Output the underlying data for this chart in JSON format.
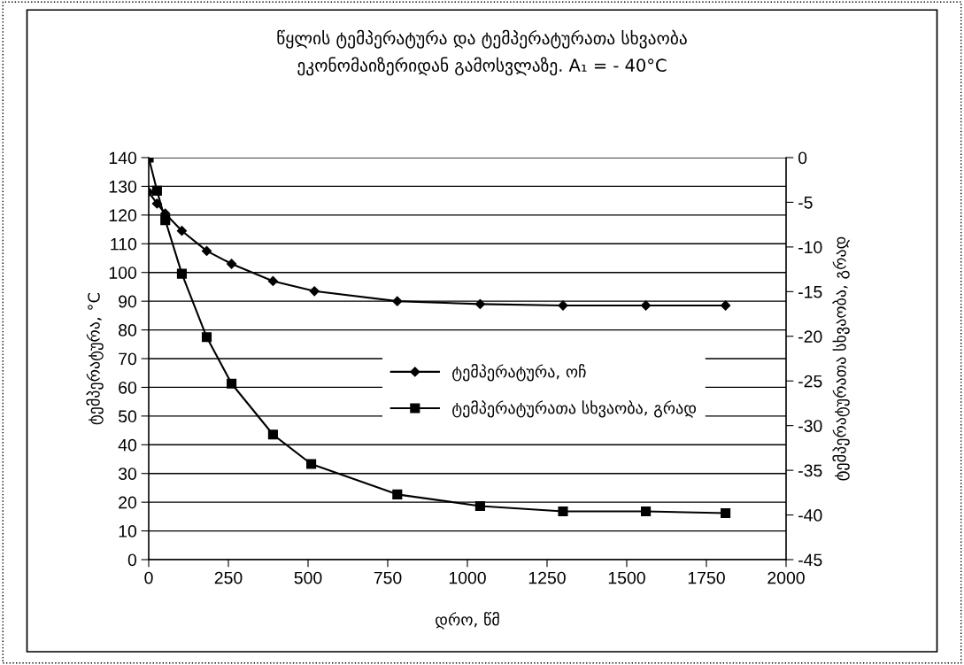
{
  "chart_data": {
    "type": "line",
    "title": "წყლის ტემპერატურა და ტემპერატურათა სხვაობა\nეკონომაიზერიდან გამოსვლაზე. A₁ = - 40°C",
    "xlabel": "დრო, წმ",
    "ylabel": "ტემპერატურა, °C",
    "y2label": "ტემპერატურათა სხვაობა, გრად",
    "series": [
      {
        "name": "ტემპერატურა, ოჩ",
        "color": "#000000",
        "marker": "diamond",
        "x": [
          0,
          26,
          52,
          104,
          182,
          260,
          390,
          520,
          780,
          1040,
          1300,
          1560,
          1810
        ],
        "values": [
          128,
          124,
          120.5,
          114.5,
          107.5,
          103,
          97,
          93.5,
          90,
          89,
          88.5,
          88.5,
          88.5
        ]
      },
      {
        "name": "ტემპერატურათა სხვაობა, გრად",
        "color": "#000000",
        "marker": "square",
        "axis": "y2",
        "x": [
          0,
          26,
          52,
          104,
          182,
          260,
          390,
          510,
          780,
          1040,
          1300,
          1560,
          1810
        ],
        "values": [
          0,
          -3.7,
          -7.0,
          -13.0,
          -20.1,
          -25.3,
          -31.0,
          -34.3,
          -37.7,
          -39.0,
          -39.6,
          -39.6,
          -39.8
        ]
      }
    ],
    "xlim": [
      0,
      2000
    ],
    "xticks": [
      0,
      250,
      500,
      750,
      1000,
      1250,
      1500,
      1750,
      2000
    ],
    "ylim": [
      0,
      140
    ],
    "yticks": [
      0,
      10,
      20,
      30,
      40,
      50,
      60,
      70,
      80,
      90,
      100,
      110,
      120,
      130,
      140
    ],
    "y2lim": [
      -45,
      0
    ],
    "y2ticks": [
      -45,
      -40,
      -35,
      -30,
      -25,
      -20,
      -15,
      -10,
      -5,
      0
    ],
    "grid": "y",
    "legend": "center",
    "line_style": "solid"
  }
}
